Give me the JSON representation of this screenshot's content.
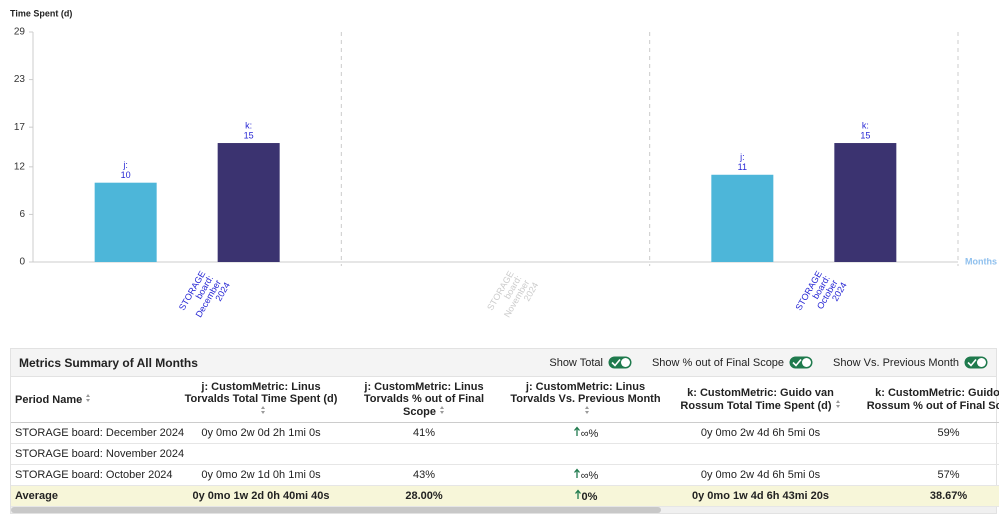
{
  "chart_data": {
    "type": "bar",
    "y_label": "Time Spent (d)",
    "x_label": "Months",
    "categories": [
      "STORAGE board: December 2024",
      "STORAGE board: November 2024",
      "STORAGE board: October 2024"
    ],
    "series": [
      {
        "name": "j:",
        "color": "#4db6d9",
        "values": [
          10,
          null,
          11
        ]
      },
      {
        "name": "k:",
        "color": "#3b3370",
        "values": [
          15,
          null,
          15
        ]
      }
    ],
    "ylim": [
      0,
      29
    ],
    "yticks": [
      0,
      6,
      12,
      17,
      23,
      29
    ]
  },
  "table": {
    "title": "Metrics Summary of All Months",
    "toggles": [
      "Show Total",
      "Show % out of Final Scope",
      "Show Vs. Previous Month"
    ],
    "columns": [
      "Period Name",
      "j: CustomMetric: Linus Torvalds Total Time Spent (d)",
      "j: CustomMetric: Linus Torvalds % out of Final Scope",
      "j: CustomMetric: Linus Torvalds Vs. Previous Month",
      "k: CustomMetric: Guido van Rossum Total Time Spent (d)",
      "k: CustomMetric: Guido van Rossum % out of Final Scope"
    ],
    "rows": [
      [
        "STORAGE board: December 2024",
        "0y 0mo 2w 0d 2h 1mi 0s",
        "41%",
        "∞%",
        "0y 0mo 2w 4d 6h 5mi 0s",
        "59%"
      ],
      [
        "STORAGE board: November 2024"
      ],
      [
        "STORAGE board: October 2024",
        "0y 0mo 2w 1d 0h 1mi 0s",
        "43%",
        "∞%",
        "0y 0mo 2w 4d 6h 5mi 0s",
        "57%"
      ]
    ],
    "footer": [
      "Average",
      "0y 0mo 1w 2d 0h 40mi 40s",
      "28.00%",
      "0%",
      "0y 0mo 1w 4d 6h 43mi 20s",
      "38.67%"
    ]
  }
}
